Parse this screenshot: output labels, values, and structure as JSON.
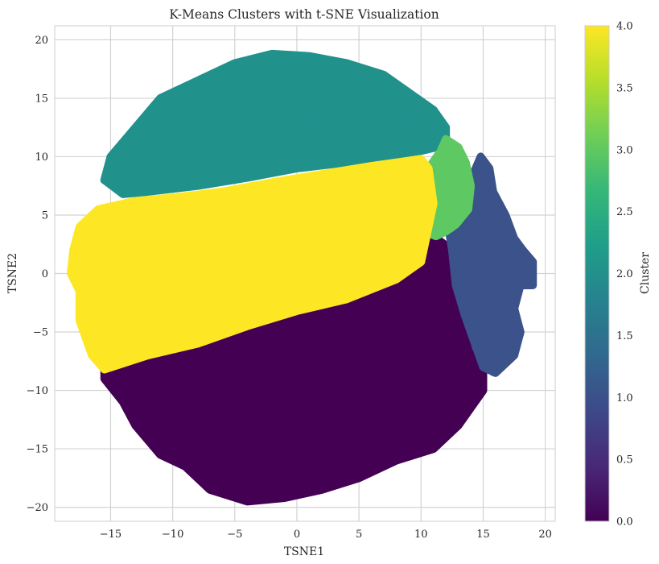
{
  "chart_data": {
    "type": "scatter",
    "title": "K-Means Clusters with t-SNE Visualization",
    "xlabel": "TSNE1",
    "ylabel": "TSNE2",
    "xlim": [
      -19.5,
      20.8
    ],
    "ylim": [
      -21.2,
      21.2
    ],
    "xticks": [
      -15,
      -10,
      -5,
      0,
      5,
      10,
      15,
      20
    ],
    "yticks": [
      -20,
      -15,
      -10,
      -5,
      0,
      5,
      10,
      15,
      20
    ],
    "grid": true,
    "colormap": "viridis",
    "colorbar": {
      "label": "Cluster",
      "range": [
        0.0,
        4.0
      ],
      "ticks": [
        "0.0",
        "0.5",
        "1.0",
        "1.5",
        "2.0",
        "2.5",
        "3.0",
        "3.5",
        "4.0"
      ]
    },
    "series": [
      {
        "cluster": 0,
        "color": "#440154",
        "region": [
          [
            -15.5,
            -8.2
          ],
          [
            -12,
            -7
          ],
          [
            -8,
            -6
          ],
          [
            -4,
            -4.5
          ],
          [
            0,
            -3.2
          ],
          [
            4,
            -2.2
          ],
          [
            7,
            -1
          ],
          [
            9.5,
            1.5
          ],
          [
            11,
            3.2
          ],
          [
            12.5,
            2
          ],
          [
            13,
            -2
          ],
          [
            14,
            -5
          ],
          [
            15,
            -8
          ],
          [
            15,
            -10
          ],
          [
            13,
            -13
          ],
          [
            11,
            -15
          ],
          [
            8,
            -16
          ],
          [
            5,
            -17.5
          ],
          [
            2,
            -18.5
          ],
          [
            -1,
            -19.2
          ],
          [
            -4,
            -19.5
          ],
          [
            -7,
            -18.5
          ],
          [
            -9,
            -16.5
          ],
          [
            -11,
            -15.5
          ],
          [
            -13,
            -13
          ],
          [
            -14,
            -11
          ],
          [
            -15.5,
            -9
          ]
        ]
      },
      {
        "cluster": 1,
        "color": "#3b528b",
        "region": [
          [
            12.5,
            2
          ],
          [
            12.2,
            4
          ],
          [
            13,
            6.5
          ],
          [
            14,
            8
          ],
          [
            14.8,
            10
          ],
          [
            15.5,
            9
          ],
          [
            15.8,
            7
          ],
          [
            16.8,
            5
          ],
          [
            17.5,
            3
          ],
          [
            18.2,
            2
          ],
          [
            19,
            1
          ],
          [
            19,
            -1
          ],
          [
            18,
            -1
          ],
          [
            17.5,
            -3
          ],
          [
            18,
            -5
          ],
          [
            17.5,
            -7
          ],
          [
            16,
            -8.5
          ],
          [
            15,
            -8
          ],
          [
            14.5,
            -6.5
          ],
          [
            13.5,
            -3.5
          ],
          [
            12.8,
            -1
          ]
        ]
      },
      {
        "cluster": 2,
        "color": "#21918c",
        "region": [
          [
            -15.5,
            8
          ],
          [
            -15,
            10
          ],
          [
            -13,
            12.5
          ],
          [
            -11,
            15
          ],
          [
            -8,
            16.5
          ],
          [
            -5,
            18
          ],
          [
            -2,
            18.8
          ],
          [
            1,
            18.6
          ],
          [
            4,
            18
          ],
          [
            7,
            17
          ],
          [
            9,
            15.5
          ],
          [
            11,
            14
          ],
          [
            12,
            12.5
          ],
          [
            12,
            11
          ],
          [
            10,
            10.5
          ],
          [
            7,
            10
          ],
          [
            4,
            9.5
          ],
          [
            0,
            9
          ],
          [
            -4,
            8.2
          ],
          [
            -8,
            7.5
          ],
          [
            -12,
            7
          ],
          [
            -14,
            6.8
          ]
        ]
      },
      {
        "cluster": 3,
        "color": "#5ec962",
        "region": [
          [
            10.5,
            3.5
          ],
          [
            11,
            6
          ],
          [
            10.6,
            9
          ],
          [
            11.6,
            10.5
          ],
          [
            12,
            11.5
          ],
          [
            13,
            10.8
          ],
          [
            13.6,
            9.5
          ],
          [
            14,
            7.5
          ],
          [
            13.8,
            5.5
          ],
          [
            12.8,
            4.2
          ],
          [
            12,
            3.6
          ],
          [
            11.2,
            3.2
          ]
        ]
      },
      {
        "cluster": 4,
        "color": "#fde725",
        "region": [
          [
            -18,
            2
          ],
          [
            -17.5,
            4
          ],
          [
            -16,
            5.5
          ],
          [
            -13,
            6.2
          ],
          [
            -10,
            6.5
          ],
          [
            -6,
            7
          ],
          [
            -2,
            7.8
          ],
          [
            2,
            8.5
          ],
          [
            6,
            9.2
          ],
          [
            10,
            9.8
          ],
          [
            10.6,
            9
          ],
          [
            11,
            6
          ],
          [
            10.5,
            3.5
          ],
          [
            10,
            1
          ],
          [
            8,
            -0.5
          ],
          [
            4,
            -2.2
          ],
          [
            0,
            -3.2
          ],
          [
            -4,
            -4.5
          ],
          [
            -8,
            -6
          ],
          [
            -12,
            -7
          ],
          [
            -15.5,
            -8.2
          ],
          [
            -16.5,
            -7
          ],
          [
            -17.5,
            -4
          ],
          [
            -17.5,
            -1.5
          ],
          [
            -18.2,
            0
          ]
        ]
      }
    ]
  }
}
